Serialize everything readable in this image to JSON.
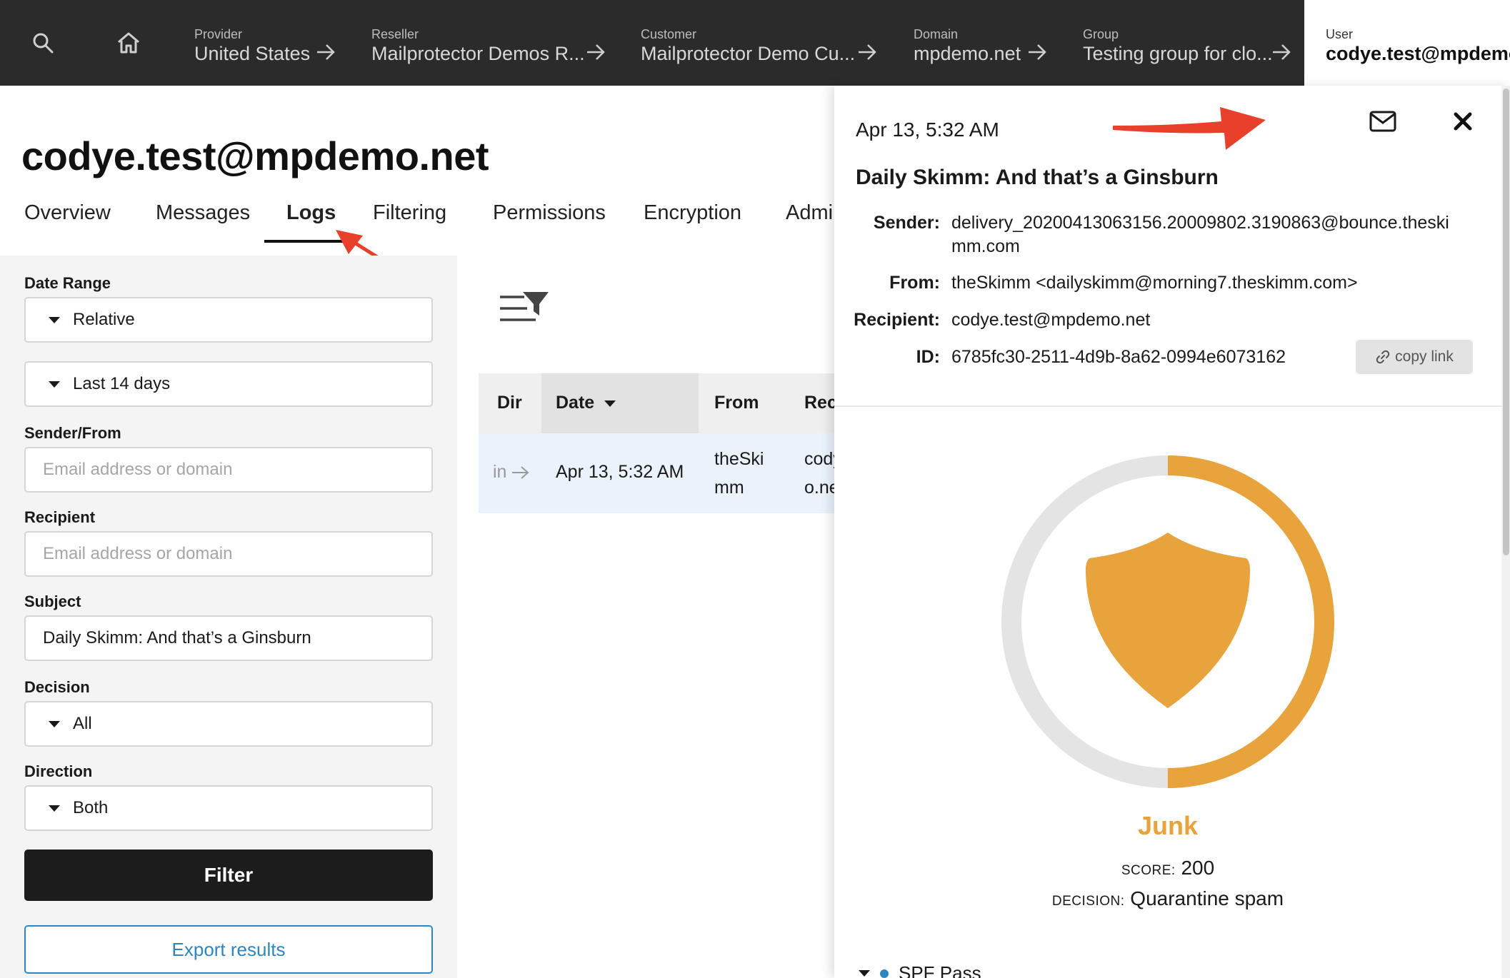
{
  "breadcrumbs": [
    {
      "label": "Provider",
      "value": "United States"
    },
    {
      "label": "Reseller",
      "value": "Mailprotector Demos R..."
    },
    {
      "label": "Customer",
      "value": "Mailprotector Demo Cu..."
    },
    {
      "label": "Domain",
      "value": "mpdemo.net"
    },
    {
      "label": "Group",
      "value": "Testing group for clo..."
    }
  ],
  "user_crumb": {
    "label": "User",
    "value": "codye.test@mpdemo.net"
  },
  "page": {
    "title": "codye.test@mpdemo.net"
  },
  "tabs": [
    "Overview",
    "Messages",
    "Logs",
    "Filtering",
    "Permissions",
    "Encryption",
    "Admin"
  ],
  "active_tab": "Logs",
  "filters": {
    "date_range_label": "Date Range",
    "date_range_type": "Relative",
    "date_range_value": "Last 14 days",
    "sender_label": "Sender/From",
    "sender_placeholder": "Email address or domain",
    "recipient_label": "Recipient",
    "recipient_placeholder": "Email address or domain",
    "subject_label": "Subject",
    "subject_value": "Daily Skimm: And that’s a Ginsburn",
    "decision_label": "Decision",
    "decision_value": "All",
    "direction_label": "Direction",
    "direction_value": "Both",
    "filter_button": "Filter",
    "export_button": "Export results"
  },
  "table": {
    "headers": {
      "dir": "Dir",
      "date": "Date",
      "from": "From",
      "recipient": "Rec"
    },
    "rows": [
      {
        "dir": "in",
        "date": "Apr 13, 5:32 AM",
        "from_line1": "theSki",
        "from_line2": "mm",
        "rec_line1": "cody",
        "rec_line2": "o.ne"
      }
    ]
  },
  "detail": {
    "date": "Apr 13, 5:32 AM",
    "subject": "Daily Skimm: And that’s a Ginsburn",
    "sender_key": "Sender:",
    "sender_line1": "delivery_20200413063156.20009802.3190863@bounce.theski",
    "sender_line2": "mm.com",
    "from_key": "From:",
    "from_value": "theSkimm <dailyskimm@morning7.theskimm.com>",
    "recipient_key": "Recipient:",
    "recipient_value": "codye.test@mpdemo.net",
    "id_key": "ID:",
    "id_value": "6785fc30-2511-4d9b-8a62-0994e6073162",
    "copy_link": "copy link",
    "verdict": "Junk",
    "score_key": "SCORE:",
    "score_value": "200",
    "score_fraction": 0.5,
    "decision_key": "DECISION:",
    "decision_value": "Quarantine spam",
    "spf_label": "SPF Pass"
  },
  "colors": {
    "topbar": "#2b2b2b",
    "junk": "#e8a33d",
    "ring_track": "#e4e4e4",
    "link": "#2e86c1",
    "annotation": "#e8402a"
  },
  "icons": [
    "search-icon",
    "home-icon",
    "arrow-right-icon",
    "filter-icon",
    "envelope-icon",
    "close-icon",
    "link-icon",
    "shield-icon"
  ]
}
